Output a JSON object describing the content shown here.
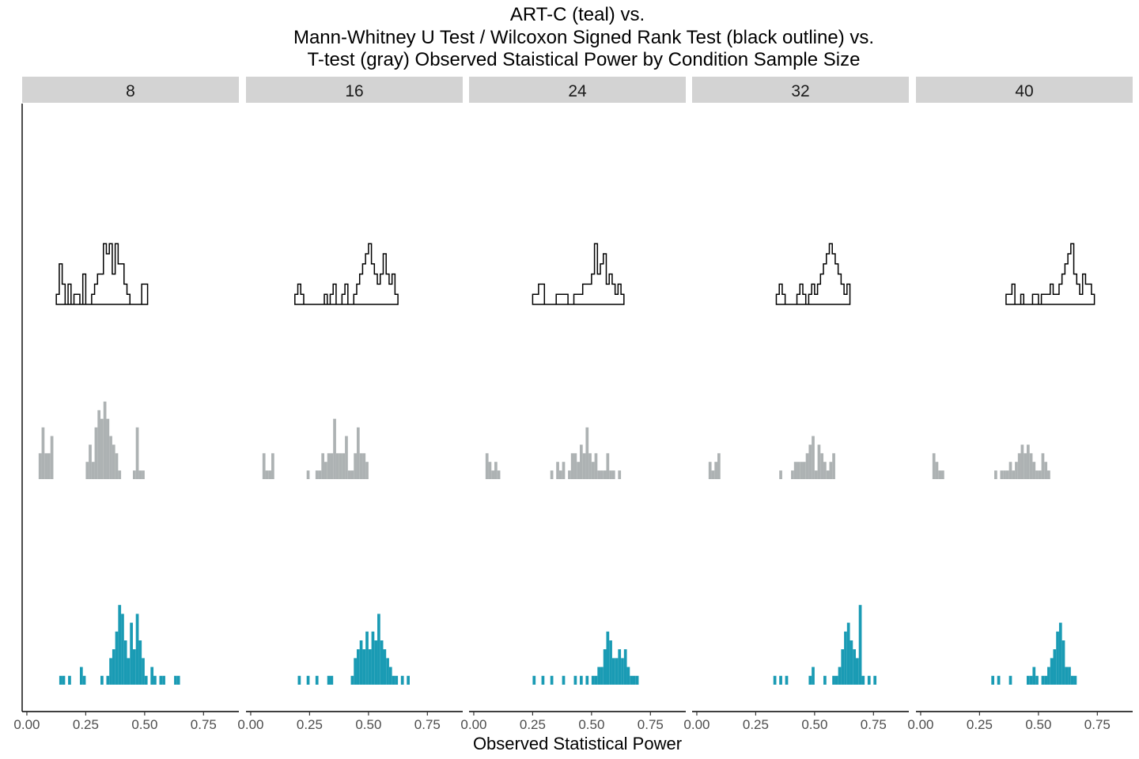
{
  "chart_data": {
    "type": "histogram",
    "title_lines": [
      "ART-C (teal) vs.",
      "Mann-Whitney U Test / Wilcoxon Signed Rank Test (black outline) vs.",
      "T-test (gray) Observed Staistical Power by Condition Sample Size"
    ],
    "xlabel": "Observed Statistical Power",
    "ylabel": "",
    "xlim": [
      -0.02,
      0.9
    ],
    "x_ticks": [
      0.0,
      0.25,
      0.5,
      0.75
    ],
    "x_tick_labels": [
      "0.00",
      "0.25",
      "0.50",
      "0.75"
    ],
    "bin_width": 0.0125,
    "grid": false,
    "colors": {
      "art_c": "#1a9bb4",
      "t_test": "#adb2b3",
      "mann_whitney_outline": "#000000",
      "strip_bg": "#d3d3d3",
      "axis": "#000000"
    },
    "panels": [
      {
        "label": "8",
        "mann_whitney": {
          "start": 0.125,
          "counts": [
            1,
            4,
            2,
            0,
            2,
            0,
            1,
            1,
            0,
            3,
            0,
            0,
            1,
            2,
            3,
            3,
            6,
            5,
            6,
            3,
            6,
            4,
            4,
            2,
            1,
            0,
            0,
            0,
            0,
            2,
            2
          ]
        },
        "t_test": {
          "start": 0.05,
          "counts": [
            3,
            6,
            3,
            3,
            5,
            0,
            0,
            0,
            0,
            0,
            0,
            0,
            0,
            0,
            0,
            0,
            2,
            4,
            2,
            6,
            8,
            7,
            9,
            7,
            5,
            4,
            3,
            1,
            0,
            0,
            0,
            0,
            1,
            6,
            1,
            1
          ]
        },
        "art_c": {
          "start": 0.1375,
          "counts": [
            1,
            1,
            0,
            1,
            0,
            0,
            0,
            2,
            1,
            0,
            0,
            0,
            0,
            0,
            1,
            0,
            1,
            3,
            4,
            6,
            9,
            8,
            5,
            3,
            7,
            4,
            8,
            5,
            3,
            1,
            0,
            2,
            1,
            0,
            1,
            1,
            0,
            0,
            0,
            1,
            1
          ]
        }
      },
      {
        "label": "16",
        "mann_whitney": {
          "start": 0.1875,
          "counts": [
            1,
            2,
            1,
            0,
            0,
            0,
            0,
            0,
            0,
            0,
            1,
            0,
            1,
            2,
            0,
            0,
            1,
            2,
            0,
            0,
            1,
            2,
            3,
            4,
            5,
            6,
            4,
            3,
            2,
            3,
            5,
            3,
            2,
            3,
            1
          ]
        },
        "t_test": {
          "start": 0.05,
          "counts": [
            3,
            1,
            1,
            3,
            0,
            0,
            0,
            0,
            0,
            0,
            0,
            0,
            0,
            0,
            0,
            1,
            0,
            0,
            1,
            1,
            3,
            2,
            3,
            3,
            7,
            3,
            3,
            3,
            5,
            1,
            1,
            3,
            6,
            3,
            3,
            2
          ]
        },
        "art_c": {
          "start": 0.2,
          "counts": [
            1,
            0,
            0,
            1,
            0,
            0,
            1,
            0,
            0,
            0,
            1,
            1,
            0,
            0,
            0,
            0,
            0,
            0,
            1,
            3,
            4,
            5,
            4,
            6,
            4,
            6,
            5,
            8,
            5,
            4,
            3,
            2,
            1,
            1,
            0,
            1,
            0,
            1
          ]
        }
      },
      {
        "label": "24",
        "mann_whitney": {
          "start": 0.25,
          "counts": [
            1,
            1,
            2,
            2,
            0,
            0,
            0,
            0,
            1,
            1,
            1,
            1,
            0,
            0,
            1,
            1,
            1,
            2,
            2,
            2,
            3,
            6,
            3,
            4,
            5,
            2,
            3,
            2,
            1,
            2,
            1
          ]
        },
        "t_test": {
          "start": 0.05,
          "counts": [
            3,
            2,
            1,
            2,
            1,
            0,
            0,
            0,
            0,
            0,
            0,
            0,
            0,
            0,
            0,
            0,
            0,
            0,
            0,
            0,
            0,
            0,
            1,
            0,
            2,
            1,
            2,
            0,
            1,
            3,
            3,
            2,
            4,
            3,
            6,
            3,
            2,
            3,
            1,
            1,
            1,
            3,
            1,
            1,
            0,
            1
          ]
        },
        "art_c": {
          "start": 0.25,
          "counts": [
            1,
            0,
            0,
            1,
            0,
            0,
            1,
            0,
            0,
            0,
            1,
            0,
            0,
            0,
            1,
            0,
            1,
            0,
            1,
            0,
            1,
            1,
            2,
            2,
            4,
            6,
            5,
            3,
            3,
            4,
            3,
            4,
            2,
            1,
            1,
            1
          ]
        }
      },
      {
        "label": "32",
        "mann_whitney": {
          "start": 0.3375,
          "counts": [
            1,
            2,
            1,
            0,
            0,
            0,
            0,
            1,
            2,
            1,
            0,
            1,
            2,
            1,
            2,
            3,
            4,
            5,
            6,
            5,
            4,
            3,
            2,
            1,
            2
          ]
        },
        "t_test": {
          "start": 0.05,
          "counts": [
            2,
            1,
            2,
            3,
            0,
            0,
            0,
            0,
            0,
            0,
            0,
            0,
            0,
            0,
            0,
            0,
            0,
            0,
            0,
            0,
            0,
            0,
            0,
            0,
            1,
            0,
            0,
            0,
            1,
            2,
            2,
            2,
            2,
            3,
            4,
            5,
            1,
            4,
            3,
            2,
            1,
            2,
            3
          ]
        },
        "art_c": {
          "start": 0.325,
          "counts": [
            1,
            0,
            1,
            0,
            1,
            0,
            0,
            0,
            0,
            0,
            0,
            0,
            1,
            2,
            0,
            0,
            0,
            1,
            0,
            0,
            1,
            1,
            2,
            4,
            6,
            7,
            5,
            4,
            3,
            9,
            1,
            0,
            1,
            0,
            1
          ]
        }
      },
      {
        "label": "40",
        "mann_whitney": {
          "start": 0.3625,
          "counts": [
            1,
            1,
            2,
            0,
            0,
            1,
            0,
            0,
            0,
            1,
            1,
            0,
            1,
            1,
            1,
            2,
            1,
            1,
            2,
            3,
            4,
            5,
            6,
            3,
            2,
            1,
            3,
            2,
            2,
            1
          ]
        },
        "t_test": {
          "start": 0.05,
          "counts": [
            3,
            2,
            1,
            1,
            0,
            0,
            0,
            0,
            0,
            0,
            0,
            0,
            0,
            0,
            0,
            0,
            0,
            0,
            0,
            0,
            0,
            1,
            0,
            1,
            1,
            1,
            2,
            1,
            2,
            3,
            4,
            3,
            4,
            3,
            2,
            1,
            1,
            3,
            2,
            1
          ]
        },
        "art_c": {
          "start": 0.3,
          "counts": [
            1,
            0,
            1,
            0,
            0,
            0,
            1,
            0,
            0,
            0,
            0,
            0,
            1,
            1,
            2,
            1,
            0,
            1,
            1,
            2,
            3,
            4,
            6,
            7,
            5,
            2,
            2,
            1,
            1
          ]
        }
      }
    ]
  }
}
